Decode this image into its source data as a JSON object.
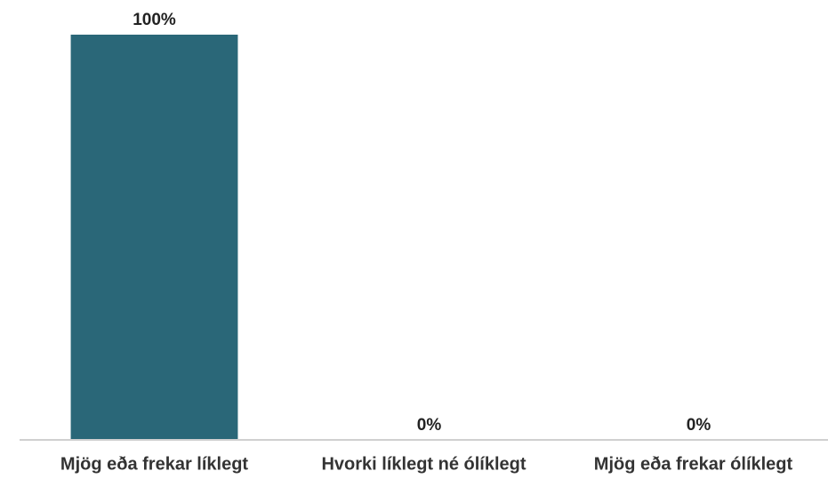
{
  "chart_data": {
    "type": "bar",
    "categories": [
      "Mjög eða frekar líklegt",
      "Hvorki líklegt né ólíklegt",
      "Mjög eða frekar ólíklegt"
    ],
    "values": [
      100,
      0,
      0
    ],
    "value_labels": [
      "100%",
      "0%",
      "0%"
    ],
    "color": "#2a6778"
  }
}
